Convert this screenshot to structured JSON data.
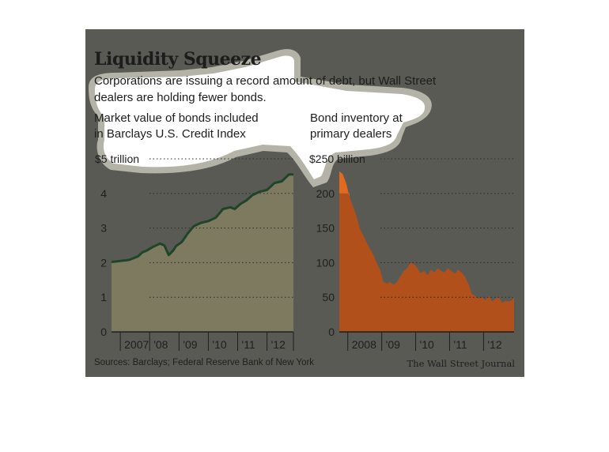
{
  "graphic": {
    "title": "Liquidity Squeeze",
    "subtitle_line1": "Corporations are issuing a record amount of debt, but Wall Street",
    "subtitle_line2": "dealers are holding fewer bonds.",
    "source": "Sources: Barclays; Federal Reserve Bank of New York",
    "credit": "The Wall Street Journal",
    "colors": {
      "background": "#5a5a55",
      "left_fill": "#7e7a60",
      "left_line": "#1f4528",
      "right_fill": "#b1501b",
      "right_peak": "#e26a1e",
      "halo": "#b4b3a8",
      "halo_inner": "#ffffff"
    }
  },
  "chart_data": [
    {
      "type": "area",
      "title_line1": "Market value of bonds included",
      "title_line2": "in Barclays U.S. Credit Index",
      "unit": "trillion",
      "ylim": [
        0,
        5
      ],
      "yticks": [
        0,
        1,
        2,
        3,
        4,
        5
      ],
      "ytick_labels": [
        "0",
        "1",
        "2",
        "3",
        "4",
        "$5 trillion"
      ],
      "xlim": [
        2006.7,
        2012.9
      ],
      "xticks": [
        {
          "label": "2007",
          "at": 2007.0
        },
        {
          "label": "'08",
          "at": 2008.0
        },
        {
          "label": "'09",
          "at": 2009.0
        },
        {
          "label": "'10",
          "at": 2010.0
        },
        {
          "label": "'11",
          "at": 2011.0
        },
        {
          "label": "'12",
          "at": 2012.0
        }
      ],
      "grid": true,
      "x": [
        2006.7,
        2007.0,
        2007.3,
        2007.6,
        2007.75,
        2007.9,
        2008.1,
        2008.35,
        2008.5,
        2008.65,
        2008.8,
        2008.9,
        2009.1,
        2009.3,
        2009.5,
        2009.75,
        2010.0,
        2010.25,
        2010.5,
        2010.75,
        2010.9,
        2011.1,
        2011.3,
        2011.5,
        2011.75,
        2012.0,
        2012.25,
        2012.5,
        2012.75,
        2012.9
      ],
      "values": [
        2.02,
        2.05,
        2.08,
        2.18,
        2.3,
        2.35,
        2.45,
        2.55,
        2.5,
        2.22,
        2.35,
        2.48,
        2.6,
        2.85,
        3.05,
        3.15,
        3.2,
        3.3,
        3.55,
        3.6,
        3.55,
        3.7,
        3.8,
        3.95,
        4.05,
        4.1,
        4.3,
        4.35,
        4.55,
        4.55
      ]
    },
    {
      "type": "area",
      "title_line1": "Bond inventory at",
      "title_line2": "primary dealers",
      "unit": "billion",
      "ylim": [
        0,
        250
      ],
      "yticks": [
        0,
        50,
        100,
        150,
        200,
        250
      ],
      "ytick_labels": [
        "0",
        "50",
        "100",
        "150",
        "200",
        "$250 billion"
      ],
      "xlim": [
        2007.75,
        2012.9
      ],
      "xticks": [
        {
          "label": "2008",
          "at": 2008.0
        },
        {
          "label": "'09",
          "at": 2009.0
        },
        {
          "label": "'10",
          "at": 2010.0
        },
        {
          "label": "'11",
          "at": 2011.0
        },
        {
          "label": "'12",
          "at": 2012.0
        }
      ],
      "grid": true,
      "x": [
        2007.75,
        2007.85,
        2007.95,
        2008.05,
        2008.15,
        2008.25,
        2008.35,
        2008.45,
        2008.55,
        2008.65,
        2008.75,
        2008.85,
        2008.95,
        2009.05,
        2009.15,
        2009.25,
        2009.35,
        2009.45,
        2009.55,
        2009.65,
        2009.75,
        2009.85,
        2009.95,
        2010.05,
        2010.15,
        2010.25,
        2010.35,
        2010.45,
        2010.55,
        2010.65,
        2010.75,
        2010.85,
        2010.95,
        2011.05,
        2011.15,
        2011.25,
        2011.35,
        2011.45,
        2011.55,
        2011.65,
        2011.75,
        2011.85,
        2011.95,
        2012.05,
        2012.15,
        2012.25,
        2012.35,
        2012.45,
        2012.55,
        2012.65,
        2012.75,
        2012.85,
        2012.9
      ],
      "values": [
        232,
        228,
        215,
        195,
        182,
        168,
        150,
        140,
        130,
        120,
        112,
        100,
        90,
        72,
        70,
        72,
        68,
        72,
        80,
        88,
        92,
        100,
        98,
        92,
        85,
        88,
        82,
        90,
        86,
        92,
        88,
        86,
        92,
        88,
        84,
        90,
        86,
        80,
        70,
        55,
        52,
        48,
        50,
        46,
        52,
        44,
        48,
        50,
        42,
        45,
        44,
        46,
        52
      ]
    }
  ]
}
